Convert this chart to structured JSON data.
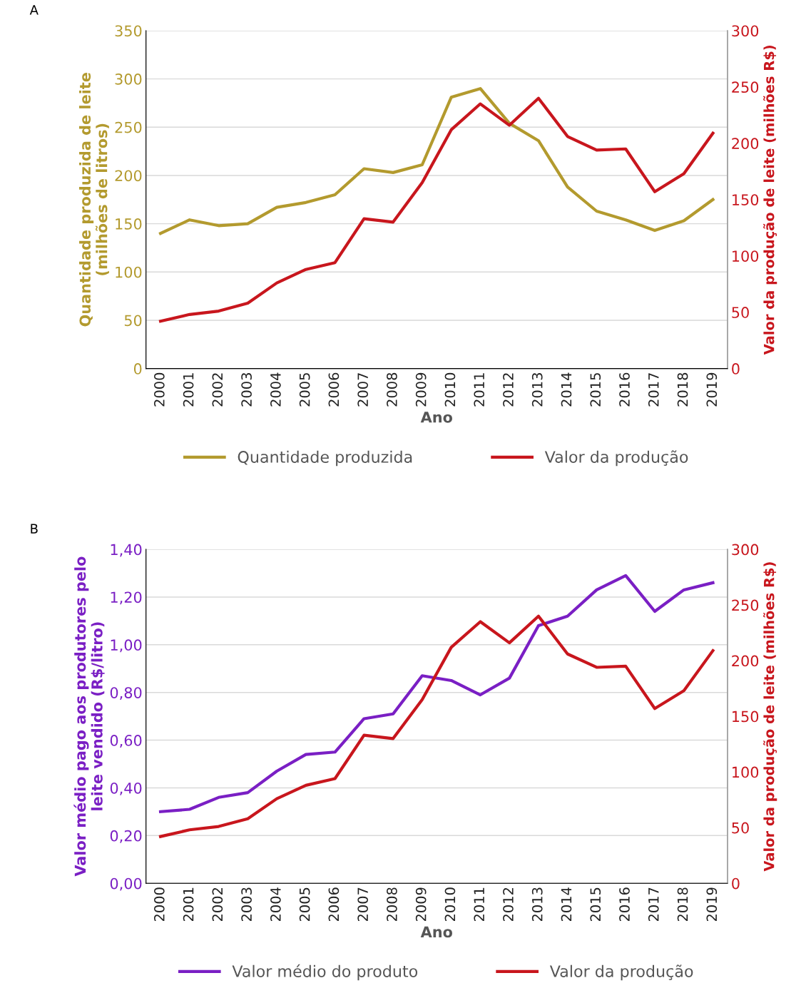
{
  "chart_data": [
    {
      "type": "line",
      "title": "A",
      "xlabel": "Ano",
      "ylabel": "Quantidade produzida de leite\n(milhões de litros)",
      "y2label": "Valor da produção de leite (milhões R$)",
      "categories": [
        "2000",
        "2001",
        "2002",
        "2003",
        "2004",
        "2005",
        "2006",
        "2007",
        "2008",
        "2009",
        "2010",
        "2011",
        "2012",
        "2013",
        "2014",
        "2015",
        "2016",
        "2017",
        "2018",
        "2019"
      ],
      "ylim": [
        0,
        350
      ],
      "yticks": [
        0,
        50,
        100,
        150,
        200,
        250,
        300,
        350
      ],
      "y2lim": [
        0,
        300
      ],
      "y2ticks": [
        0,
        50,
        100,
        150,
        200,
        250,
        300
      ],
      "grid": "y",
      "legend": "bottom",
      "marker": "none",
      "line_style": "solid",
      "series": [
        {
          "name": "Quantidade produzida",
          "color": "#b39a2e",
          "values": [
            140,
            154,
            148,
            150,
            167,
            172,
            180,
            207,
            203,
            211,
            281,
            290,
            254,
            236,
            188,
            163,
            154,
            143,
            153,
            175
          ]
        },
        {
          "name": "Valor da produção",
          "color": "#c8161d",
          "axis": "y2",
          "values": [
            42,
            48,
            51,
            58,
            76,
            88,
            94,
            133,
            130,
            165,
            212,
            235,
            216,
            240,
            206,
            194,
            195,
            157,
            173,
            209
          ]
        }
      ]
    },
    {
      "type": "line",
      "title": "B",
      "xlabel": "Ano",
      "ylabel": "Valor médio pago aos produtores pelo\nleite vendido (R$/litro)",
      "y2label": "Valor da produção de leite (milhões R$)",
      "categories": [
        "2000",
        "2001",
        "2002",
        "2003",
        "2004",
        "2005",
        "2006",
        "2007",
        "2008",
        "2009",
        "2010",
        "2011",
        "2012",
        "2013",
        "2014",
        "2015",
        "2016",
        "2017",
        "2018",
        "2019"
      ],
      "ylim": [
        0,
        1.4
      ],
      "yticks": [
        {
          "value": 0,
          "label": "0,00"
        },
        {
          "value": 0.2,
          "label": "0,20"
        },
        {
          "value": 0.4,
          "label": "0,40"
        },
        {
          "value": 0.6,
          "label": "0,60"
        },
        {
          "value": 0.8,
          "label": "0,80"
        },
        {
          "value": 1.0,
          "label": "1,00"
        },
        {
          "value": 1.2,
          "label": "1,20"
        },
        {
          "value": 1.4,
          "label": "1,40"
        }
      ],
      "y2lim": [
        0,
        300
      ],
      "y2ticks": [
        0,
        50,
        100,
        150,
        200,
        250,
        300
      ],
      "grid": "y",
      "legend": "bottom",
      "marker": "none",
      "line_style": "solid",
      "series": [
        {
          "name": "Valor médio do produto",
          "color": "#7a1fc4",
          "values": [
            0.3,
            0.31,
            0.36,
            0.38,
            0.47,
            0.54,
            0.55,
            0.69,
            0.71,
            0.87,
            0.85,
            0.79,
            0.86,
            1.08,
            1.12,
            1.23,
            1.29,
            1.14,
            1.23,
            1.26
          ]
        },
        {
          "name": "Valor da produção",
          "color": "#c8161d",
          "axis": "y2",
          "values": [
            42,
            48,
            51,
            58,
            76,
            88,
            94,
            133,
            130,
            165,
            212,
            235,
            216,
            240,
            206,
            194,
            195,
            157,
            173,
            209
          ]
        }
      ]
    }
  ]
}
